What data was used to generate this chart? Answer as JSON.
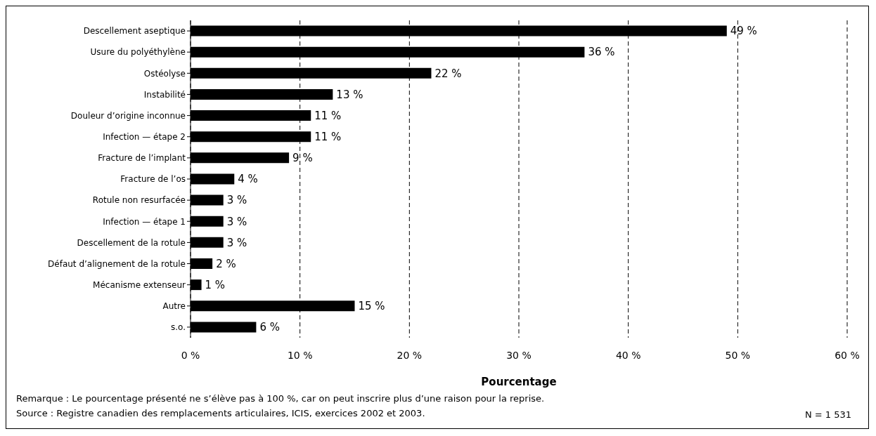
{
  "chart_data": {
    "type": "bar",
    "orientation": "horizontal",
    "xlabel": "Pourcentage",
    "categories": [
      "Descellement aseptique",
      "Usure du polyéthylène",
      "Ostéolyse",
      "Instabilité",
      "Douleur d’origine inconnue",
      "Infection — étape 2",
      "Fracture de l’implant",
      "Fracture de l’os",
      "Rotule non resurfacée",
      "Infection — étape 1",
      "Descellement de la rotule",
      "Défaut d’alignement de la rotule",
      "Mécanisme extenseur",
      "Autre",
      "s.o."
    ],
    "values": [
      49,
      36,
      22,
      13,
      11,
      11,
      9,
      4,
      3,
      3,
      3,
      2,
      1,
      15,
      6
    ],
    "value_labels": [
      "49 %",
      "36 %",
      "22 %",
      "13 %",
      "11 %",
      "11 %",
      "9 %",
      "4 %",
      "3 %",
      "3 %",
      "3 %",
      "2 %",
      "1 %",
      "15 %",
      "6 %"
    ],
    "color": "#000000",
    "xlim": [
      0,
      60
    ],
    "xticks": [
      {
        "value": 0,
        "label": "0 %"
      },
      {
        "value": 10,
        "label": "10 %"
      },
      {
        "value": 20,
        "label": "20 %"
      },
      {
        "value": 30,
        "label": "30 %"
      },
      {
        "value": 40,
        "label": "40 %"
      },
      {
        "value": 50,
        "label": "50 %"
      },
      {
        "value": 60,
        "label": "60 %"
      }
    ],
    "grid": "x",
    "legend": false,
    "annotations": [
      "Remarque : Le pourcentage présenté ne s’élève pas à 100 %, car on peut inscrire plus d’une raison pour la reprise.",
      "Source : Registre canadien des remplacements articulaires, ICIS, exercices 2002 et 2003.",
      "N = 1 531"
    ]
  }
}
